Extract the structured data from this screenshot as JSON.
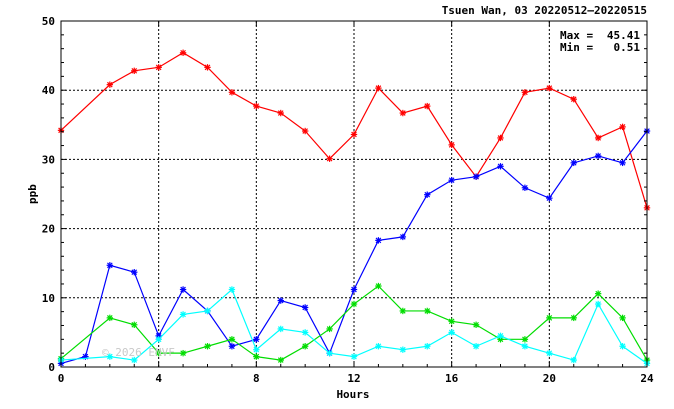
{
  "chart_data": {
    "type": "line",
    "title": "Tsuen Wan, 03 20220512–20220515",
    "xlabel": "Hours",
    "ylabel": "ppb",
    "xlim": [
      0,
      24
    ],
    "ylim": [
      0,
      50
    ],
    "xticks": [
      0,
      4,
      8,
      12,
      16,
      20,
      24
    ],
    "yticks": [
      0,
      10,
      20,
      30,
      40,
      50
    ],
    "grid": true,
    "annotations": {
      "max_label": "Max =",
      "max_value": "45.41",
      "min_label": "Min =",
      "min_value": "0.51"
    },
    "watermark": "© 2026 ENVF",
    "x": [
      0,
      1,
      2,
      3,
      4,
      5,
      6,
      7,
      8,
      9,
      10,
      11,
      12,
      13,
      14,
      15,
      16,
      17,
      18,
      19,
      20,
      21,
      22,
      23,
      24
    ],
    "series": [
      {
        "color": "#ff0000",
        "values": [
          34.2,
          null,
          40.8,
          42.8,
          43.3,
          45.41,
          43.3,
          39.7,
          37.7,
          36.7,
          34.1,
          30.1,
          33.6,
          40.3,
          36.7,
          37.7,
          32.1,
          27.5,
          33.1,
          39.7,
          40.3,
          38.7,
          33.1,
          34.7,
          23.0
        ]
      },
      {
        "color": "#0000ff",
        "values": [
          0.51,
          1.5,
          14.7,
          13.7,
          4.5,
          11.2,
          8.1,
          3.0,
          4.0,
          9.6,
          8.6,
          2.0,
          11.2,
          18.3,
          18.8,
          24.9,
          27.0,
          27.5,
          29.0,
          25.9,
          24.4,
          29.5,
          30.5,
          29.5,
          34.1
        ]
      },
      {
        "color": "#00dd00",
        "values": [
          1.2,
          null,
          7.1,
          6.1,
          2.0,
          2.0,
          3.0,
          4.0,
          1.5,
          1.0,
          3.0,
          5.5,
          9.1,
          11.7,
          8.1,
          8.1,
          6.6,
          6.1,
          4.0,
          4.0,
          7.1,
          7.1,
          10.6,
          7.1,
          1.0
        ]
      },
      {
        "color": "#00ffff",
        "values": [
          1.0,
          null,
          1.5,
          1.0,
          4.0,
          7.6,
          8.1,
          11.2,
          2.5,
          5.5,
          5.0,
          2.0,
          1.5,
          3.0,
          2.5,
          3.0,
          5.0,
          3.0,
          4.5,
          3.0,
          2.0,
          1.0,
          9.1,
          3.0,
          0.51
        ]
      }
    ]
  }
}
